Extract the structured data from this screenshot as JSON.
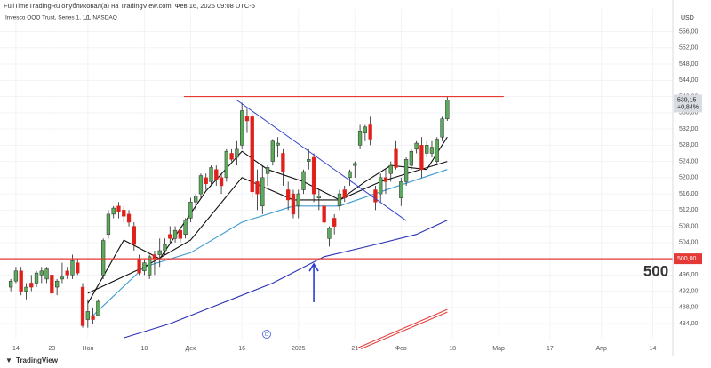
{
  "chart_data": {
    "type": "candlestick",
    "title": "FullTimeTradingRu опубликовал(а) на TradingView.com, Фев 16, 2025 09:08 UTC-5",
    "subtitle": "Invesco QQQ Trust, Series 1, 1Д, NASDAQ",
    "currency": "USD",
    "footer": "TradingView",
    "dividend_marker": "D",
    "up_color": "#5cab5c",
    "down_color": "#e0211b",
    "categories": [
      null,
      null,
      null,
      null,
      null,
      null,
      null,
      null,
      null,
      null,
      null,
      null,
      null,
      null,
      null,
      null,
      null,
      null,
      null,
      null,
      null,
      null,
      null,
      null,
      null,
      null,
      null,
      null,
      null,
      null,
      null,
      null,
      null,
      null,
      null,
      null,
      null,
      null,
      null,
      null,
      null,
      null,
      null,
      null,
      null,
      null,
      null,
      null,
      null,
      null,
      null,
      null,
      null,
      null,
      null,
      null,
      null,
      null,
      null,
      null,
      null,
      null,
      null,
      null,
      null,
      null,
      null,
      null,
      null,
      null,
      null,
      null,
      null,
      null,
      null,
      null,
      null,
      null,
      null,
      null,
      null,
      null,
      null,
      null,
      null,
      null
    ],
    "open": [
      493,
      494.5,
      497,
      492,
      494,
      494,
      496,
      495,
      496,
      493,
      495,
      497,
      496,
      499,
      493,
      485,
      486,
      486,
      496,
      506,
      511,
      513,
      512,
      511,
      508,
      500,
      497,
      496,
      501,
      501,
      502,
      506,
      505,
      507,
      506,
      510,
      514,
      516,
      520,
      519,
      522,
      520,
      520,
      526,
      525,
      528,
      535,
      535,
      519,
      513,
      521,
      524,
      528,
      526,
      517,
      516,
      513,
      517,
      524,
      525,
      515,
      513,
      505,
      510,
      513,
      517,
      520,
      523,
      528,
      531,
      533,
      517,
      516,
      520,
      521,
      527,
      515,
      519,
      523,
      527,
      528,
      526,
      526,
      524,
      530,
      534.5
    ],
    "high": [
      495,
      498,
      498,
      494,
      496,
      497,
      498,
      498,
      497,
      495,
      499,
      498,
      501,
      500,
      494,
      490,
      488,
      490,
      505,
      512,
      513,
      514,
      513,
      512,
      509,
      501,
      500,
      501,
      502,
      505,
      505,
      508,
      508,
      508,
      510,
      515,
      516,
      521,
      521,
      523,
      523,
      521,
      527,
      527,
      529,
      538.5,
      537,
      536,
      522,
      523,
      523,
      529.5,
      530,
      527,
      519,
      517,
      517,
      522,
      527,
      526,
      517,
      514,
      508,
      511,
      517,
      518,
      522,
      524,
      533,
      533,
      535,
      518,
      521,
      522,
      524,
      529,
      520,
      525,
      527,
      529,
      530,
      529,
      529,
      530,
      535,
      540
    ],
    "low": [
      492,
      494,
      491,
      490,
      492,
      493,
      494,
      494,
      490,
      491,
      494,
      495,
      495,
      496,
      483,
      483,
      484,
      486,
      495,
      505,
      510,
      510,
      509,
      508,
      502,
      496,
      496,
      495,
      496,
      498,
      501,
      504,
      504,
      504,
      505,
      509,
      512,
      515,
      517,
      518,
      518,
      516,
      519,
      524,
      523,
      527,
      531,
      515,
      512,
      511,
      518,
      523,
      525,
      518,
      512,
      510,
      510,
      516,
      522,
      514,
      512,
      508,
      503,
      506,
      512,
      514,
      518,
      520,
      527,
      529,
      528,
      512,
      514,
      516,
      519,
      522,
      513,
      518,
      522,
      526,
      520,
      525,
      525,
      523,
      529,
      534
    ],
    "close": [
      494.5,
      497,
      492,
      493,
      493,
      496.5,
      497,
      497.5,
      491.5,
      494.5,
      495.5,
      496,
      499.5,
      496.5,
      483.5,
      487,
      485,
      489.5,
      504.5,
      511,
      512.5,
      511.5,
      510.5,
      509,
      503.5,
      496.5,
      499,
      500.5,
      500,
      502,
      503.5,
      505,
      507,
      505,
      509.5,
      514,
      515.5,
      520.5,
      518.5,
      522.5,
      519.5,
      518,
      526.5,
      524.5,
      527,
      536.5,
      534,
      516.5,
      516,
      520,
      522.5,
      529,
      528.5,
      521.5,
      514.5,
      511,
      516,
      521.5,
      524.5,
      516,
      515.5,
      509,
      507.5,
      508,
      516,
      515,
      521.5,
      523.5,
      531.5,
      532.5,
      529.5,
      514,
      520,
      519,
      523,
      522.5,
      519,
      524.5,
      526.5,
      528.5,
      522,
      528,
      527.5,
      529.5,
      534.5,
      539.15
    ],
    "last_price_label": "539,15",
    "change_label": "+0,84%",
    "xlim": [
      -2.1,
      128.9
    ],
    "ylim": [
      480.3,
      561.6
    ],
    "grid": true,
    "xticks": [
      {
        "value": 1,
        "label": "14"
      },
      {
        "value": 8,
        "label": "23"
      },
      {
        "value": 15,
        "label": "Ноя"
      },
      {
        "value": 26,
        "label": "18"
      },
      {
        "value": 35,
        "label": "Дек"
      },
      {
        "value": 45,
        "label": "16"
      },
      {
        "value": 56,
        "label": "2025"
      },
      {
        "value": 67,
        "label": "21"
      },
      {
        "value": 76,
        "label": "Фев"
      },
      {
        "value": 86,
        "label": "18"
      },
      {
        "value": 95,
        "label": "Мар"
      },
      {
        "value": 105,
        "label": "17"
      },
      {
        "value": 115,
        "label": "Апр"
      },
      {
        "value": 125,
        "label": "14"
      }
    ],
    "yticks": [
      {
        "value": 484,
        "label": "484,00"
      },
      {
        "value": 488,
        "label": "488,00"
      },
      {
        "value": 492,
        "label": "492,00"
      },
      {
        "value": 496,
        "label": "496,00"
      },
      {
        "value": 500,
        "label": "500,00"
      },
      {
        "value": 504,
        "label": "504,00"
      },
      {
        "value": 508,
        "label": "508,00"
      },
      {
        "value": 512,
        "label": "512,00"
      },
      {
        "value": 516,
        "label": "516,00"
      },
      {
        "value": 520,
        "label": "520,00"
      },
      {
        "value": 524,
        "label": "524,00"
      },
      {
        "value": 528,
        "label": "528,00"
      },
      {
        "value": 532,
        "label": "532,00"
      },
      {
        "value": 536,
        "label": "536,00"
      },
      {
        "value": 540,
        "label": "540,00"
      },
      {
        "value": 544,
        "label": "544,00"
      },
      {
        "value": 548,
        "label": "548,00"
      },
      {
        "value": 552,
        "label": "552,00"
      },
      {
        "value": 556,
        "label": "556,00"
      }
    ],
    "overlays": [
      {
        "type": "line",
        "color": "#2b2fb5",
        "x": [
          22,
          31,
          41,
          51,
          61,
          71,
          79,
          85
        ],
        "values": [
          480.5,
          484,
          489,
          494,
          500.5,
          503.5,
          506,
          509.5
        ]
      },
      {
        "type": "line",
        "color": "#3d9ad1",
        "x": [
          16,
          26,
          35,
          45,
          55,
          64,
          72,
          85
        ],
        "values": [
          486,
          498,
          501.5,
          509,
          513,
          513,
          516.5,
          522
        ]
      },
      {
        "type": "line",
        "color": "#111111",
        "x": [
          15,
          26,
          35,
          45,
          55,
          64,
          72,
          85
        ],
        "values": [
          491.5,
          498,
          504.6,
          520,
          514.5,
          514.5,
          519,
          524
        ]
      },
      {
        "type": "line",
        "color": "#111111",
        "x": [
          15,
          22,
          29,
          38,
          45,
          50,
          57,
          64,
          69,
          74,
          81,
          85
        ],
        "values": [
          489,
          504.6,
          500,
          516.7,
          526.5,
          522,
          519,
          514.5,
          519,
          523,
          522,
          530
        ]
      }
    ],
    "hlines": [
      {
        "value": 540,
        "color": "#e53935",
        "x": [
          33.7,
          96
        ]
      },
      {
        "value": 500,
        "color": "#e53935",
        "label": "500,00"
      }
    ],
    "trendlines": [
      {
        "color": "#3344cc",
        "x": [
          43.8,
          77
        ],
        "values": [
          539.3,
          509.4
        ]
      },
      {
        "color": "#e53935",
        "x": [
          67.5,
          85
        ],
        "values": [
          478,
          487.5
        ]
      }
    ],
    "arrow": {
      "color": "#2b3bd0",
      "x": 59,
      "values": [
        489.3,
        498.7
      ]
    },
    "annotations": [
      "500"
    ]
  }
}
